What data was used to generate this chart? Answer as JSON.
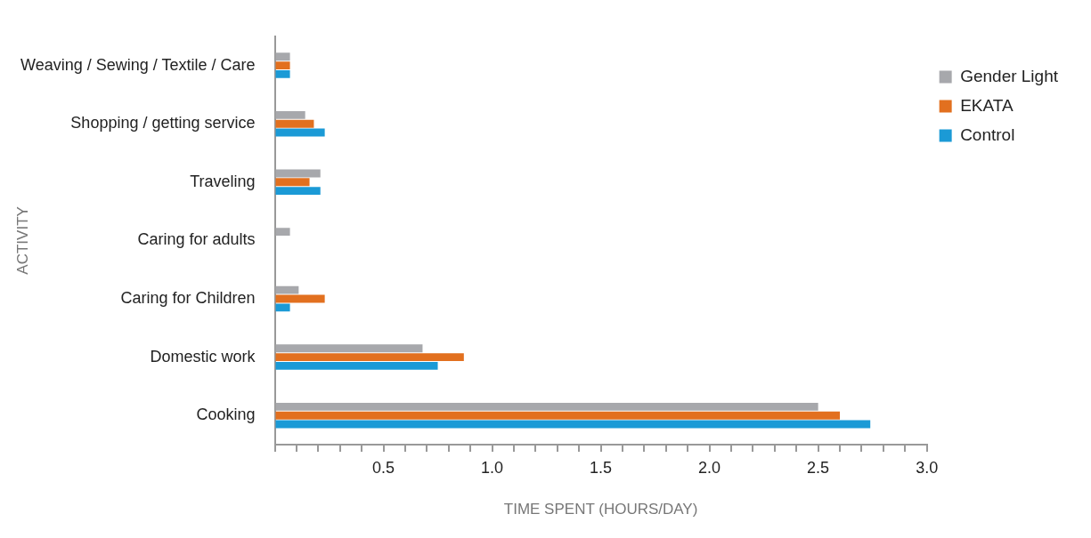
{
  "chart_data": {
    "type": "bar",
    "orientation": "horizontal",
    "xlabel": "TIME SPENT (HOURS/DAY)",
    "ylabel": "ACTIVITY",
    "categories": [
      "Weaving / Sewing / Textile / Care",
      "Shopping / getting service",
      "Traveling",
      "Caring for adults",
      "Caring for Children",
      "Domestic work",
      "Cooking"
    ],
    "series": [
      {
        "name": "Gender Light",
        "color": "#a7a8ac",
        "values": [
          0.07,
          0.14,
          0.21,
          0.07,
          0.11,
          0.68,
          2.5
        ]
      },
      {
        "name": "EKATA",
        "color": "#e2701f",
        "values": [
          0.07,
          0.18,
          0.16,
          null,
          0.23,
          0.87,
          2.6
        ]
      },
      {
        "name": "Control",
        "color": "#1b9ad6",
        "values": [
          0.07,
          0.23,
          0.21,
          null,
          0.07,
          0.75,
          2.74
        ]
      }
    ],
    "xlim": [
      0,
      3
    ],
    "xticks": [
      {
        "value": 0,
        "label": null
      },
      {
        "value": 0.1,
        "label": null
      },
      {
        "value": 0.2,
        "label": null
      },
      {
        "value": 0.3,
        "label": null
      },
      {
        "value": 0.4,
        "label": null
      },
      {
        "value": 0.5,
        "label": "0.5"
      },
      {
        "value": 0.6,
        "label": null
      },
      {
        "value": 0.7,
        "label": null
      },
      {
        "value": 0.8,
        "label": null
      },
      {
        "value": 0.9,
        "label": null
      },
      {
        "value": 1,
        "label": "1.0"
      },
      {
        "value": 1.1,
        "label": null
      },
      {
        "value": 1.2,
        "label": null
      },
      {
        "value": 1.3,
        "label": null
      },
      {
        "value": 1.4,
        "label": null
      },
      {
        "value": 1.5,
        "label": "1.5"
      },
      {
        "value": 1.6,
        "label": null
      },
      {
        "value": 1.7,
        "label": null
      },
      {
        "value": 1.8,
        "label": null
      },
      {
        "value": 1.9,
        "label": null
      },
      {
        "value": 2,
        "label": "2.0"
      },
      {
        "value": 2.1,
        "label": null
      },
      {
        "value": 2.2,
        "label": null
      },
      {
        "value": 2.3,
        "label": null
      },
      {
        "value": 2.4,
        "label": null
      },
      {
        "value": 2.5,
        "label": "2.5"
      },
      {
        "value": 2.6,
        "label": null
      },
      {
        "value": 2.7,
        "label": null
      },
      {
        "value": 2.8,
        "label": null
      },
      {
        "value": 2.9,
        "label": null
      },
      {
        "value": 3,
        "label": "3.0"
      }
    ],
    "grid": false,
    "legend": "right"
  }
}
